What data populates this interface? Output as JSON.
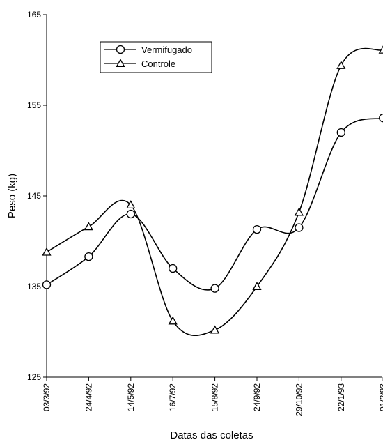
{
  "chart_data": {
    "type": "line",
    "xlabel": "Datas das coletas",
    "ylabel": "Peso (kg)",
    "ylim": [
      125,
      165
    ],
    "yticks": [
      125,
      135,
      145,
      155,
      165
    ],
    "categories": [
      "03/3/92",
      "24/4/92",
      "14/5/92",
      "16/7/92",
      "15/8/92",
      "24/9/92",
      "29/10/92",
      "22/1/93",
      "01/2/93"
    ],
    "series": [
      {
        "name": "Vermifugado",
        "marker": "circle",
        "values": [
          135.2,
          138.3,
          143.0,
          137.0,
          134.8,
          141.3,
          141.5,
          152.0,
          153.6
        ]
      },
      {
        "name": "Controle",
        "marker": "triangle",
        "values": [
          138.8,
          141.6,
          144.0,
          131.2,
          130.2,
          135.0,
          143.2,
          159.4,
          161.1
        ]
      }
    ],
    "legend": "top-left",
    "grid": false
  }
}
